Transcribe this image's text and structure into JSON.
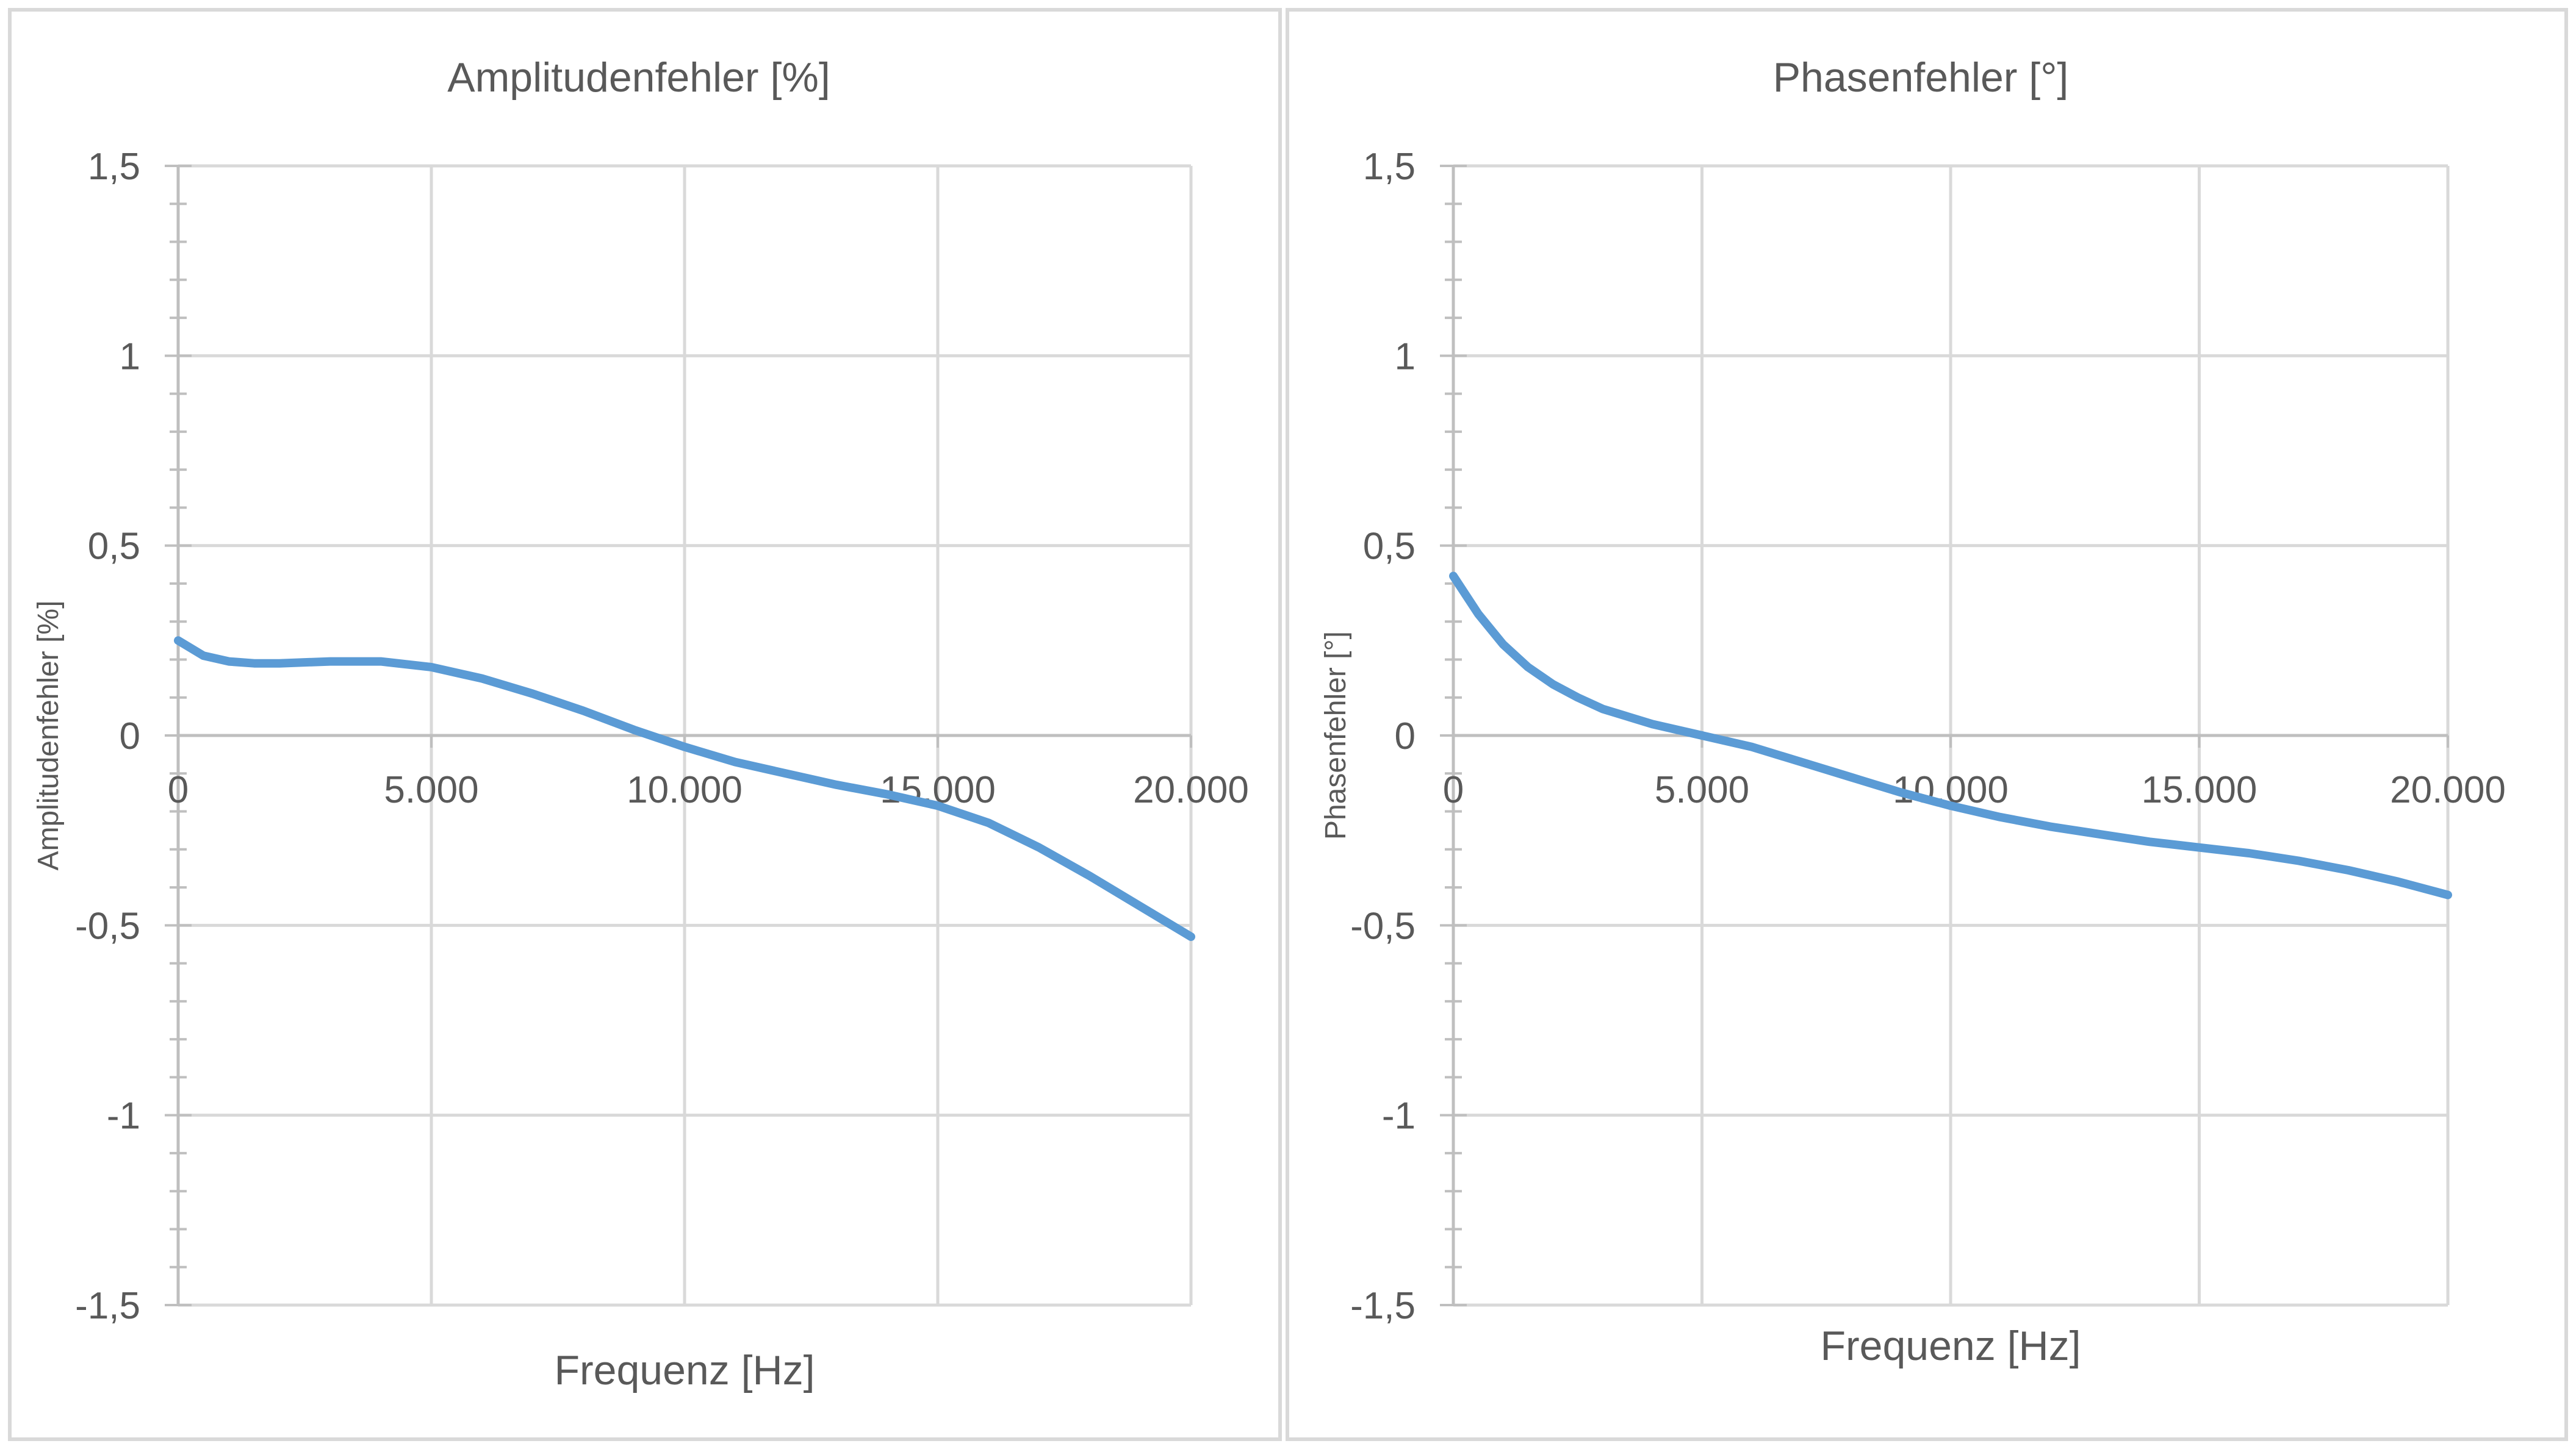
{
  "chart_data": [
    {
      "type": "line",
      "title": "Amplitudenfehler [%]",
      "xlabel": "Frequenz [Hz]",
      "ylabel": "Amplitudenfehler [%]",
      "xlim": [
        0,
        20000
      ],
      "ylim": [
        -1.5,
        1.5
      ],
      "xticks": [
        0,
        5000,
        10000,
        15000,
        20000
      ],
      "xtick_labels": [
        "0",
        "5.000",
        "10.000",
        "15.000",
        "20.000"
      ],
      "yticks": [
        1.5,
        1,
        0.5,
        0,
        -0.5,
        -1,
        -1.5
      ],
      "ytick_labels": [
        "1,5",
        "1",
        "0,5",
        "0",
        "-0,5",
        "-1",
        "-1,5"
      ],
      "grid": true,
      "color": "#5b9bd5",
      "series": [
        {
          "x": [
            0,
            500,
            1000,
            1500,
            2000,
            3000,
            4000,
            5000,
            6000,
            7000,
            8000,
            9000,
            10000,
            11000,
            12000,
            13000,
            14000,
            15000,
            16000,
            17000,
            18000,
            19000,
            20000
          ],
          "y": [
            0.25,
            0.21,
            0.195,
            0.19,
            0.19,
            0.195,
            0.195,
            0.18,
            0.15,
            0.11,
            0.065,
            0.015,
            -0.03,
            -0.07,
            -0.1,
            -0.13,
            -0.155,
            -0.185,
            -0.23,
            -0.295,
            -0.37,
            -0.45,
            -0.53
          ]
        }
      ]
    },
    {
      "type": "line",
      "title": "Phasenfehler [°]",
      "xlabel": "Frequenz [Hz]",
      "ylabel": "Phasenfehler [°]",
      "xlim": [
        0,
        20000
      ],
      "ylim": [
        -1.5,
        1.5
      ],
      "xticks": [
        0,
        5000,
        10000,
        15000,
        20000
      ],
      "xtick_labels": [
        "0",
        "5.000",
        "10.000",
        "15.000",
        "20.000"
      ],
      "yticks": [
        1.5,
        1,
        0.5,
        0,
        -0.5,
        -1,
        -1.5
      ],
      "ytick_labels": [
        "1,5",
        "1",
        "0,5",
        "0",
        "-0,5",
        "-1",
        "-1,5"
      ],
      "grid": true,
      "color": "#5b9bd5",
      "series": [
        {
          "x": [
            0,
            250,
            500,
            1000,
            1500,
            2000,
            2500,
            3000,
            4000,
            5000,
            6000,
            7000,
            8000,
            9000,
            10000,
            11000,
            12000,
            13000,
            14000,
            15000,
            16000,
            17000,
            18000,
            19000,
            20000
          ],
          "y": [
            0.42,
            0.37,
            0.32,
            0.24,
            0.18,
            0.135,
            0.1,
            0.07,
            0.03,
            0.0,
            -0.03,
            -0.07,
            -0.11,
            -0.15,
            -0.185,
            -0.215,
            -0.24,
            -0.26,
            -0.28,
            -0.295,
            -0.31,
            -0.33,
            -0.355,
            -0.385,
            -0.42
          ]
        }
      ]
    }
  ]
}
